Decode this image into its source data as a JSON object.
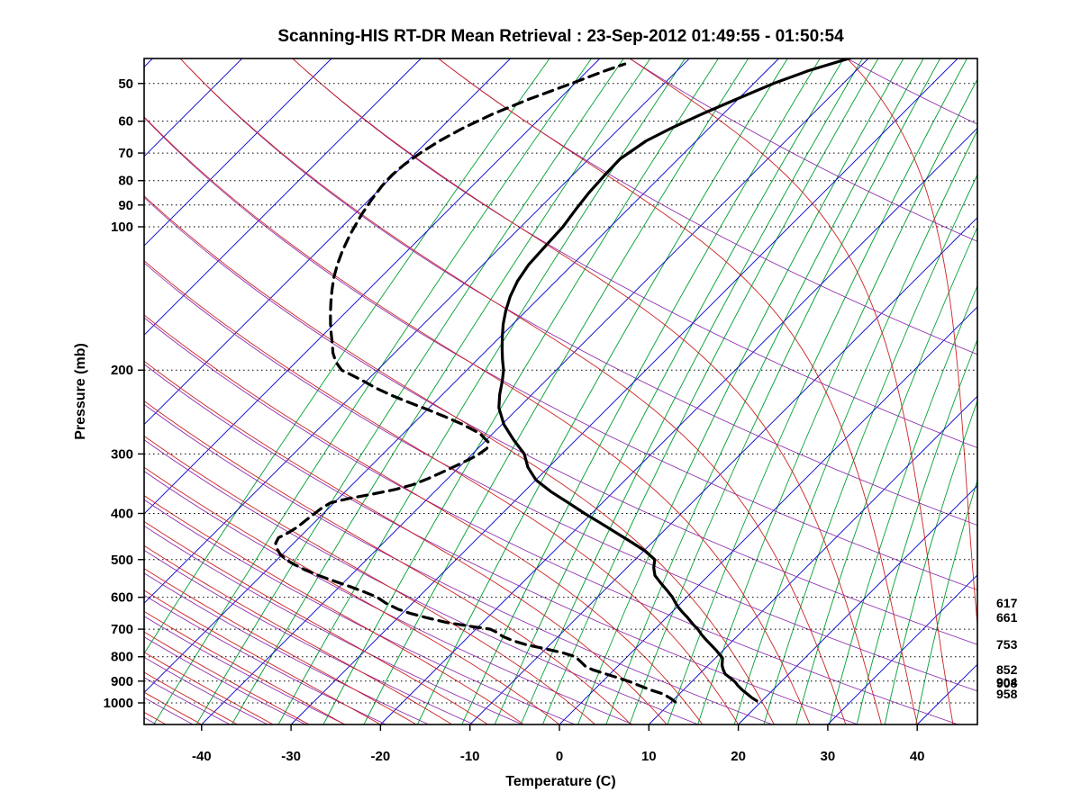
{
  "title": "Scanning-HIS RT-DR Mean Retrieval : 23-Sep-2012 01:49:55 - 01:50:54",
  "chart_data": {
    "type": "line",
    "variant": "skew-t-log-p",
    "xlabel": "Temperature (C)",
    "ylabel": "Pressure (mb)",
    "x_ticks": [
      -40,
      -30,
      -20,
      -10,
      0,
      10,
      20,
      30,
      40
    ],
    "y_ticks": [
      50,
      60,
      70,
      80,
      90,
      100,
      200,
      300,
      400,
      500,
      600,
      700,
      800,
      900,
      1000
    ],
    "x_range_surface_c": [
      -46.5,
      46.8
    ],
    "p_range_mb": [
      44,
      1110
    ],
    "grid": "dotted horizontal isobars at labeled pressures",
    "legend_position": "none",
    "level_labels_mb": [
      617,
      661,
      753,
      852,
      904,
      908,
      958
    ],
    "colors": {
      "isotherm": "#0000CC",
      "moist_adiabat": "#CC2222",
      "dry_adiabat": "#8822AA",
      "mixing_ratio": "#00A030",
      "isobar": "#000000",
      "profile": "#000000",
      "frame": "#000000"
    },
    "background_lines": {
      "isotherms_c": {
        "min": -120,
        "max": 50,
        "step": 10
      },
      "moist_adiabats_thetaw_c": {
        "min": -64,
        "max": 72,
        "step": 4
      },
      "dry_adiabats": "paired to moist adiabats by equivalent potential temperature",
      "mixing_ratio_g_kg": [
        0.03,
        0.06,
        0.1,
        0.15,
        0.25,
        0.4,
        0.6,
        1,
        1.5,
        2,
        2.5,
        3,
        4,
        5,
        6,
        8,
        10,
        13,
        16,
        20,
        25,
        30,
        36,
        44
      ]
    },
    "series": [
      {
        "name": "Temperature",
        "line": "solid",
        "color": "#000000",
        "points_p_T": [
          [
            990,
            19.4
          ],
          [
            975,
            18.5
          ],
          [
            958,
            17.6
          ],
          [
            940,
            16.6
          ],
          [
            920,
            15.6
          ],
          [
            904,
            14.9
          ],
          [
            890,
            14.1
          ],
          [
            870,
            12.9
          ],
          [
            852,
            12.2
          ],
          [
            835,
            11.6
          ],
          [
            820,
            11.2
          ],
          [
            805,
            10.8
          ],
          [
            790,
            10.0
          ],
          [
            775,
            9.2
          ],
          [
            753,
            7.9
          ],
          [
            735,
            6.8
          ],
          [
            720,
            5.9
          ],
          [
            700,
            4.8
          ],
          [
            685,
            3.8
          ],
          [
            661,
            2.3
          ],
          [
            645,
            1.2
          ],
          [
            630,
            0.2
          ],
          [
            617,
            -0.6
          ],
          [
            600,
            -1.6
          ],
          [
            580,
            -3.0
          ],
          [
            560,
            -4.5
          ],
          [
            540,
            -6.0
          ],
          [
            520,
            -7.0
          ],
          [
            500,
            -7.8
          ],
          [
            480,
            -9.8
          ],
          [
            460,
            -12.3
          ],
          [
            440,
            -15.0
          ],
          [
            420,
            -17.8
          ],
          [
            400,
            -20.8
          ],
          [
            380,
            -23.8
          ],
          [
            360,
            -27.0
          ],
          [
            340,
            -30.0
          ],
          [
            320,
            -32.3
          ],
          [
            300,
            -34.2
          ],
          [
            280,
            -37.0
          ],
          [
            260,
            -39.8
          ],
          [
            240,
            -42.2
          ],
          [
            225,
            -43.6
          ],
          [
            210,
            -44.9
          ],
          [
            200,
            -45.9
          ],
          [
            190,
            -47.2
          ],
          [
            180,
            -48.5
          ],
          [
            170,
            -49.8
          ],
          [
            160,
            -51.1
          ],
          [
            150,
            -52.3
          ],
          [
            140,
            -53.4
          ],
          [
            130,
            -54.3
          ],
          [
            120,
            -54.9
          ],
          [
            110,
            -55.1
          ],
          [
            100,
            -55.3
          ],
          [
            92,
            -55.8
          ],
          [
            85,
            -56.2
          ],
          [
            78,
            -56.4
          ],
          [
            72,
            -56.5
          ],
          [
            66,
            -55.6
          ],
          [
            62,
            -54.2
          ],
          [
            58,
            -52.4
          ],
          [
            54,
            -50.2
          ],
          [
            50,
            -47.8
          ],
          [
            47,
            -45.3
          ],
          [
            44,
            -41.8
          ]
        ]
      },
      {
        "name": "Dew Point",
        "line": "dashed",
        "color": "#000000",
        "points_p_T": [
          [
            995,
            10.4
          ],
          [
            980,
            9.6
          ],
          [
            958,
            8.2
          ],
          [
            940,
            6.4
          ],
          [
            920,
            4.6
          ],
          [
            904,
            3.2
          ],
          [
            890,
            1.8
          ],
          [
            870,
            -0.4
          ],
          [
            852,
            -2.4
          ],
          [
            838,
            -3.6
          ],
          [
            820,
            -4.6
          ],
          [
            800,
            -5.8
          ],
          [
            785,
            -7.6
          ],
          [
            770,
            -10.0
          ],
          [
            755,
            -12.6
          ],
          [
            740,
            -14.6
          ],
          [
            725,
            -16.2
          ],
          [
            710,
            -17.4
          ],
          [
            700,
            -18.4
          ],
          [
            690,
            -21.0
          ],
          [
            678,
            -24.0
          ],
          [
            661,
            -27.0
          ],
          [
            648,
            -29.2
          ],
          [
            635,
            -31.0
          ],
          [
            617,
            -33.0
          ],
          [
            600,
            -34.6
          ],
          [
            585,
            -36.6
          ],
          [
            570,
            -38.8
          ],
          [
            555,
            -41.2
          ],
          [
            540,
            -43.6
          ],
          [
            525,
            -45.8
          ],
          [
            510,
            -47.8
          ],
          [
            500,
            -49.0
          ],
          [
            488,
            -50.2
          ],
          [
            475,
            -51.2
          ],
          [
            462,
            -52.0
          ],
          [
            450,
            -52.3
          ],
          [
            440,
            -51.8
          ],
          [
            428,
            -51.4
          ],
          [
            415,
            -51.2
          ],
          [
            402,
            -51.0
          ],
          [
            390,
            -50.8
          ],
          [
            380,
            -50.4
          ],
          [
            372,
            -48.8
          ],
          [
            364,
            -46.6
          ],
          [
            356,
            -44.6
          ],
          [
            348,
            -43.2
          ],
          [
            338,
            -42.2
          ],
          [
            326,
            -41.2
          ],
          [
            314,
            -40.2
          ],
          [
            302,
            -39.3
          ],
          [
            292,
            -39.0
          ],
          [
            283,
            -39.6
          ],
          [
            272,
            -41.4
          ],
          [
            260,
            -44.4
          ],
          [
            250,
            -47.4
          ],
          [
            242,
            -50.0
          ],
          [
            234,
            -52.8
          ],
          [
            226,
            -55.6
          ],
          [
            218,
            -58.2
          ],
          [
            210,
            -60.6
          ],
          [
            204,
            -62.6
          ],
          [
            200,
            -64.0
          ],
          [
            192,
            -65.6
          ],
          [
            184,
            -66.9
          ],
          [
            176,
            -68.0
          ],
          [
            168,
            -69.2
          ],
          [
            160,
            -70.4
          ],
          [
            152,
            -71.6
          ],
          [
            144,
            -72.8
          ],
          [
            136,
            -74.0
          ],
          [
            128,
            -75.2
          ],
          [
            120,
            -76.3
          ],
          [
            112,
            -77.3
          ],
          [
            104,
            -78.2
          ],
          [
            100,
            -78.6
          ],
          [
            94,
            -79.2
          ],
          [
            88,
            -79.7
          ],
          [
            82,
            -80.1
          ],
          [
            78,
            -80.2
          ],
          [
            74,
            -80.0
          ],
          [
            70,
            -79.5
          ],
          [
            66,
            -78.7
          ],
          [
            62,
            -77.5
          ],
          [
            58,
            -75.8
          ],
          [
            54,
            -73.4
          ],
          [
            50,
            -70.4
          ],
          [
            47,
            -68.0
          ],
          [
            45.5,
            -66.6
          ]
        ]
      }
    ]
  }
}
